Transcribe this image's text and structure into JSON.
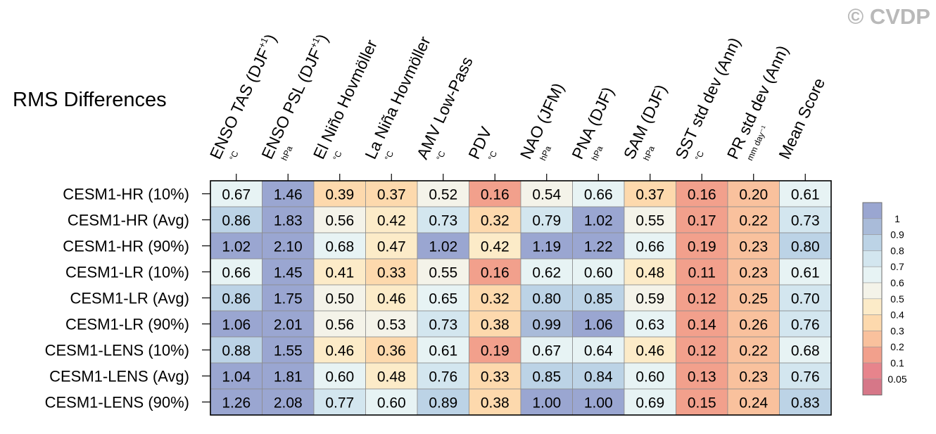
{
  "copyright": "© CVDP",
  "chart_data": {
    "type": "heatmap",
    "title": "RMS Differences",
    "columns": [
      {
        "label": "ENSO TAS (DJF",
        "sup": "+1",
        "close": ")",
        "unit": "°C"
      },
      {
        "label": "ENSO PSL (DJF",
        "sup": "+1",
        "close": ")",
        "unit": "hPa"
      },
      {
        "label": "El Niño Hovmöller",
        "sup": "",
        "close": "",
        "unit": "°C"
      },
      {
        "label": "La Niña Hovmöller",
        "sup": "",
        "close": "",
        "unit": "°C"
      },
      {
        "label": "AMV Low-Pass",
        "sup": "",
        "close": "",
        "unit": "°C"
      },
      {
        "label": "PDV",
        "sup": "",
        "close": "",
        "unit": "°C"
      },
      {
        "label": "NAO (JFM)",
        "sup": "",
        "close": "",
        "unit": "hPa"
      },
      {
        "label": "PNA (DJF)",
        "sup": "",
        "close": "",
        "unit": "hPa"
      },
      {
        "label": "SAM (DJF)",
        "sup": "",
        "close": "",
        "unit": "hPa"
      },
      {
        "label": "SST std dev (Ann)",
        "sup": "",
        "close": "",
        "unit": "°C"
      },
      {
        "label": "PR std dev (Ann)",
        "sup": "",
        "close": "",
        "unit": "mm day⁻¹"
      },
      {
        "label": "Mean Score",
        "sup": "",
        "close": "",
        "unit": ""
      }
    ],
    "rows": [
      "CESM1-HR (10%)",
      "CESM1-HR (Avg)",
      "CESM1-HR (90%)",
      "CESM1-LR (10%)",
      "CESM1-LR (Avg)",
      "CESM1-LR (90%)",
      "CESM1-LENS (10%)",
      "CESM1-LENS (Avg)",
      "CESM1-LENS (90%)"
    ],
    "values": [
      [
        "0.67",
        "1.46",
        "0.39",
        "0.37",
        "0.52",
        "0.16",
        "0.54",
        "0.66",
        "0.37",
        "0.16",
        "0.20",
        "0.61"
      ],
      [
        "0.86",
        "1.83",
        "0.56",
        "0.42",
        "0.73",
        "0.32",
        "0.79",
        "1.02",
        "0.55",
        "0.17",
        "0.22",
        "0.73"
      ],
      [
        "1.02",
        "2.10",
        "0.68",
        "0.47",
        "1.02",
        "0.42",
        "1.19",
        "1.22",
        "0.66",
        "0.19",
        "0.23",
        "0.80"
      ],
      [
        "0.66",
        "1.45",
        "0.41",
        "0.33",
        "0.55",
        "0.16",
        "0.62",
        "0.60",
        "0.48",
        "0.11",
        "0.23",
        "0.61"
      ],
      [
        "0.86",
        "1.75",
        "0.50",
        "0.46",
        "0.65",
        "0.32",
        "0.80",
        "0.85",
        "0.59",
        "0.12",
        "0.25",
        "0.70"
      ],
      [
        "1.06",
        "2.01",
        "0.56",
        "0.53",
        "0.73",
        "0.38",
        "0.99",
        "1.06",
        "0.63",
        "0.14",
        "0.26",
        "0.76"
      ],
      [
        "0.88",
        "1.55",
        "0.46",
        "0.36",
        "0.61",
        "0.19",
        "0.67",
        "0.64",
        "0.46",
        "0.12",
        "0.22",
        "0.68"
      ],
      [
        "1.04",
        "1.81",
        "0.60",
        "0.48",
        "0.76",
        "0.33",
        "0.85",
        "0.84",
        "0.60",
        "0.13",
        "0.23",
        "0.76"
      ],
      [
        "1.26",
        "2.08",
        "0.77",
        "0.60",
        "0.89",
        "0.38",
        "1.00",
        "1.00",
        "0.69",
        "0.15",
        "0.24",
        "0.83"
      ]
    ],
    "colorbar": {
      "levels": [
        "1",
        "0.9",
        "0.8",
        "0.7",
        "0.6",
        "0.5",
        "0.4",
        "0.3",
        "0.2",
        "0.1",
        "0.05"
      ],
      "colors": [
        "#9aa6d1",
        "#a9bbd9",
        "#bcd3e6",
        "#d3e6ef",
        "#e7f3f4",
        "#f4f3e9",
        "#fcebc8",
        "#fdd9ad",
        "#f9c19d",
        "#f2a08c",
        "#e7848c",
        "#d67788"
      ],
      "thresholds": [
        1,
        0.9,
        0.8,
        0.7,
        0.6,
        0.5,
        0.4,
        0.3,
        0.2,
        0.1,
        0.05
      ],
      "placement": "right"
    }
  }
}
